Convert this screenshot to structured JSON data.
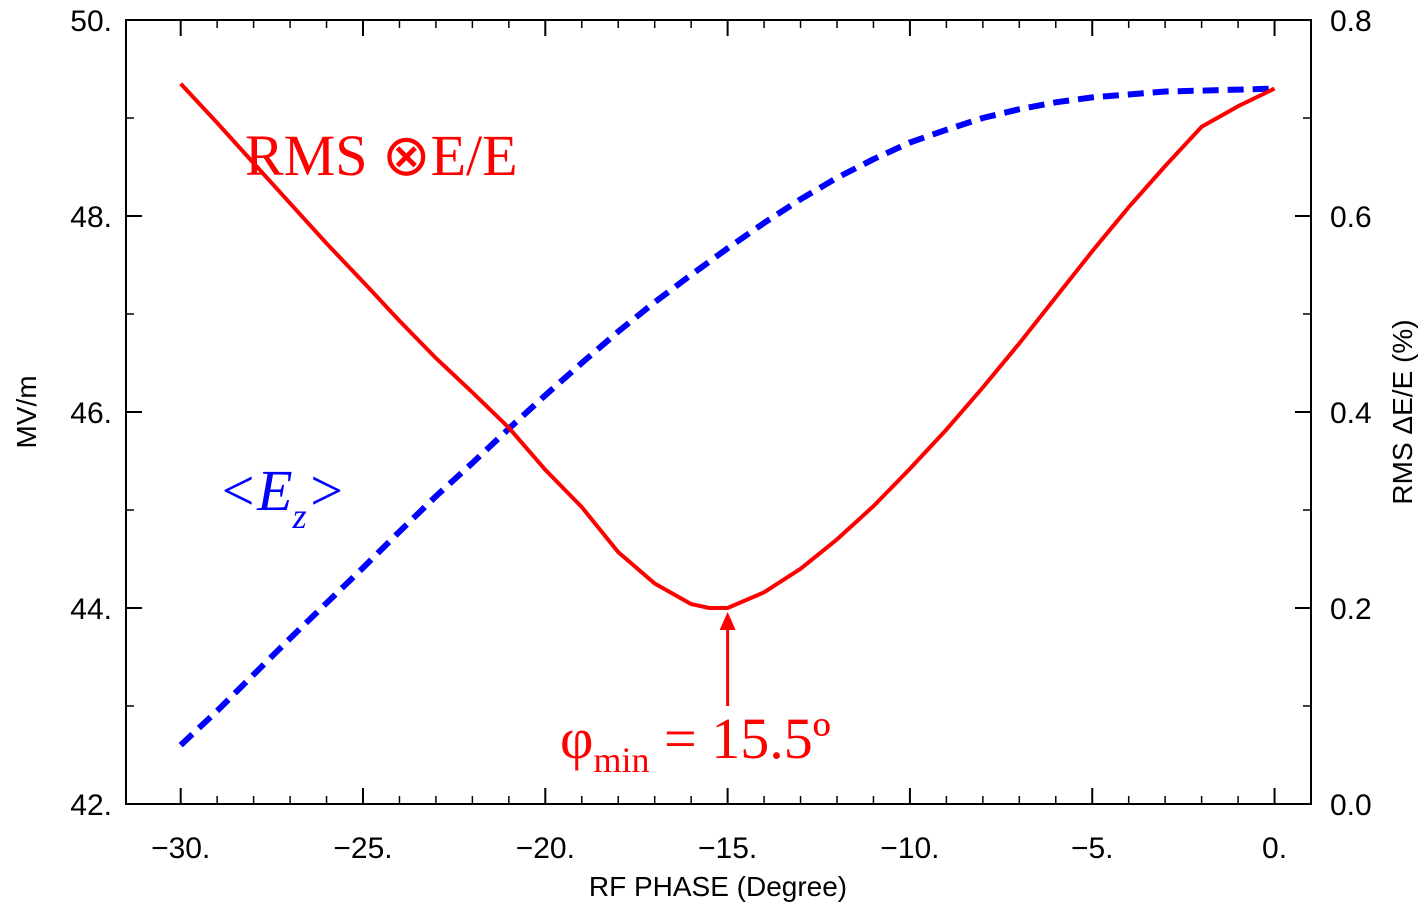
{
  "chart_data": {
    "type": "line",
    "xlabel": "RF PHASE (Degree)",
    "ylabel": "MV/m",
    "y2label": "RMS ΔE/E (%)",
    "xlim": [
      -31.5,
      1.0
    ],
    "ylim": [
      42.0,
      50.0
    ],
    "y2lim": [
      0.0,
      0.8
    ],
    "x_ticks": [
      -30,
      -25,
      -20,
      -15,
      -10,
      -5,
      0
    ],
    "x_tick_labels": [
      "−30.",
      "−25.",
      "−20.",
      "−15.",
      "−10.",
      "−5.",
      "0."
    ],
    "y_ticks": [
      42,
      44,
      46,
      48,
      50
    ],
    "y_tick_labels": [
      "42.",
      "44.",
      "46.",
      "48.",
      "50."
    ],
    "y2_ticks": [
      0.0,
      0.2,
      0.4,
      0.6,
      0.8
    ],
    "y2_tick_labels": [
      "0.0",
      "0.2",
      "0.4",
      "0.6",
      "0.8"
    ],
    "grid": false,
    "series": [
      {
        "axis": "left",
        "color": "#0000ff",
        "style": "dashed",
        "x": [
          -30,
          -29,
          -28,
          -27,
          -26,
          -25,
          -24,
          -23,
          -22,
          -21,
          -20,
          -19,
          -18,
          -17,
          -16,
          -15,
          -14,
          -13,
          -12,
          -11,
          -10,
          -9,
          -8,
          -7,
          -6,
          -5,
          -4,
          -3,
          -2,
          -1,
          0
        ],
        "y": [
          42.6,
          42.95,
          43.32,
          43.69,
          44.05,
          44.41,
          44.78,
          45.14,
          45.48,
          45.83,
          46.17,
          46.5,
          46.82,
          47.12,
          47.4,
          47.67,
          47.93,
          48.17,
          48.39,
          48.58,
          48.75,
          48.88,
          49.0,
          49.09,
          49.16,
          49.21,
          49.24,
          49.27,
          49.28,
          49.29,
          49.3
        ]
      },
      {
        "axis": "right",
        "color": "#ff0000",
        "style": "solid",
        "x": [
          -30,
          -29,
          -28,
          -27,
          -26,
          -25,
          -24,
          -23,
          -22,
          -21,
          -20,
          -19,
          -18,
          -17,
          -16,
          -15.5,
          -15,
          -14,
          -13,
          -12,
          -11,
          -10,
          -9,
          -8,
          -7,
          -6,
          -5,
          -4,
          -3,
          -2,
          -1,
          0
        ],
        "y": [
          0.735,
          0.695,
          0.654,
          0.613,
          0.572,
          0.533,
          0.493,
          0.455,
          0.42,
          0.384,
          0.341,
          0.303,
          0.257,
          0.225,
          0.204,
          0.2,
          0.2,
          0.216,
          0.24,
          0.27,
          0.304,
          0.342,
          0.382,
          0.425,
          0.47,
          0.517,
          0.564,
          0.609,
          0.651,
          0.691,
          0.712,
          0.73
        ]
      }
    ],
    "annotations": {
      "rms_label": "RMS ⊗E/E",
      "ez_label": "<E",
      "ez_sub": "z",
      "ez_close": ">",
      "phi_label": "φ",
      "phi_sub": "min",
      "phi_value": " = 15.5º",
      "arrow_x": -15.0,
      "arrow_y2": 0.2
    }
  }
}
